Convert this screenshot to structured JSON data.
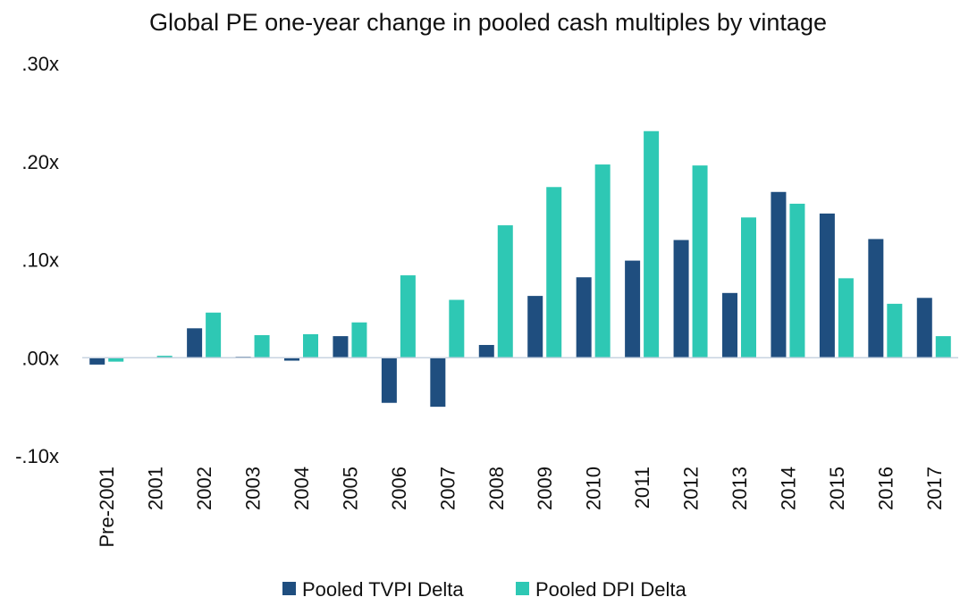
{
  "chart_data": {
    "type": "bar",
    "title": "Global PE one-year change in pooled cash multiples by vintage",
    "categories": [
      "Pre-2001",
      "2001",
      "2002",
      "2003",
      "2004",
      "2005",
      "2006",
      "2007",
      "2008",
      "2009",
      "2010",
      "2011",
      "2012",
      "2013",
      "2014",
      "2015",
      "2016",
      "2017"
    ],
    "series": [
      {
        "name": "Pooled TVPI Delta",
        "color": "#1f4e7f",
        "values": [
          -0.007,
          0.0,
          0.03,
          0.001,
          -0.003,
          0.022,
          -0.046,
          -0.05,
          0.013,
          0.063,
          0.082,
          0.099,
          0.12,
          0.066,
          0.169,
          0.147,
          0.121,
          0.061
        ]
      },
      {
        "name": "Pooled DPI Delta",
        "color": "#2ec8b4",
        "values": [
          -0.004,
          0.002,
          0.046,
          0.023,
          0.024,
          0.036,
          0.084,
          0.059,
          0.135,
          0.174,
          0.197,
          0.231,
          0.196,
          0.143,
          0.157,
          0.081,
          0.055,
          0.022
        ]
      }
    ],
    "ylim": [
      -0.1,
      0.3
    ],
    "yticks": [
      {
        "value": 0.3,
        "label": ".30x"
      },
      {
        "value": 0.2,
        "label": ".20x"
      },
      {
        "value": 0.1,
        "label": ".10x"
      },
      {
        "value": 0.0,
        "label": ".00x"
      },
      {
        "value": -0.1,
        "label": "-.10x"
      }
    ],
    "grid": false,
    "legend_position": "bottom-center"
  }
}
